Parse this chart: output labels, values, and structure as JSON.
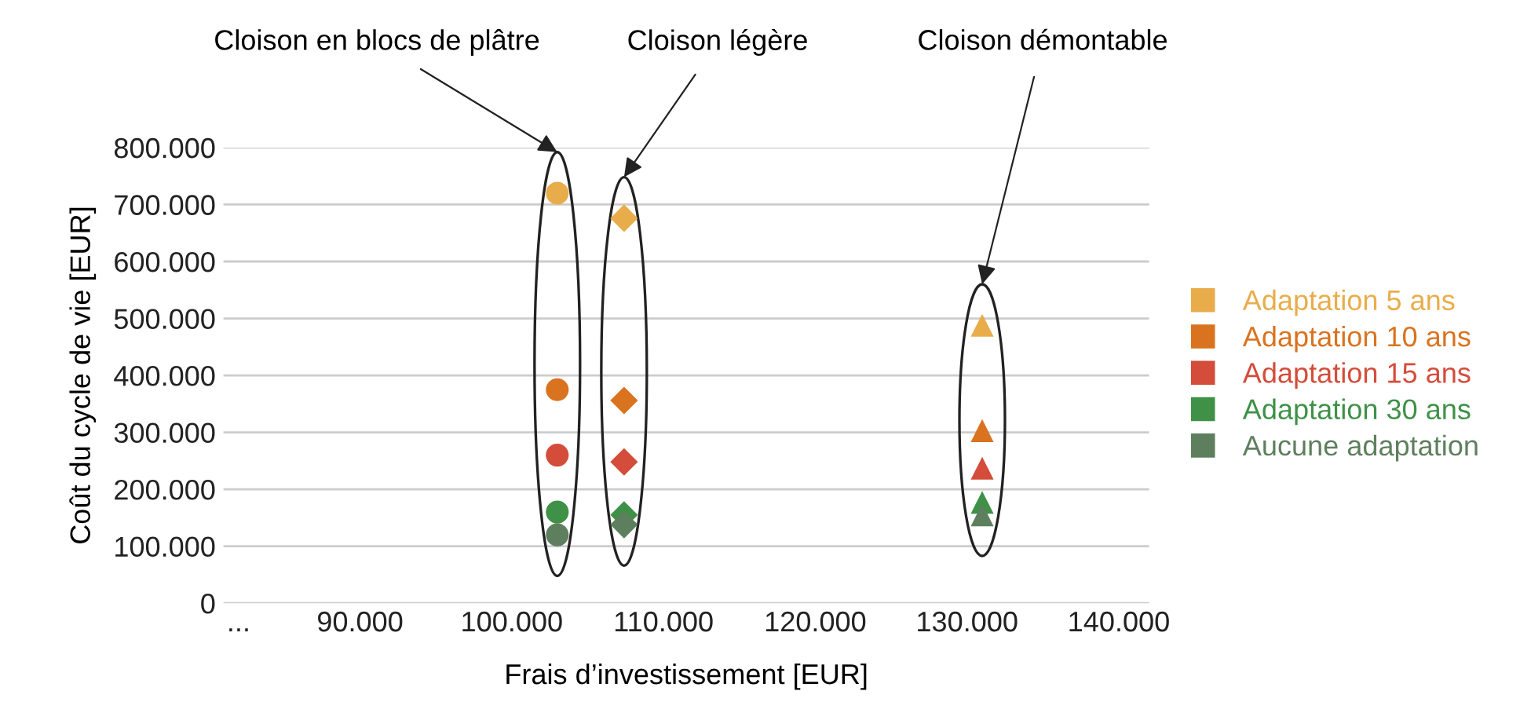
{
  "chart_data": {
    "type": "scatter",
    "xlabel": "Frais d’investissement [EUR]",
    "ylabel": "Coût du cycle de vie [EUR]",
    "x": [
      103000,
      107400,
      131000
    ],
    "marker": [
      "circle",
      "diamond",
      "triangle"
    ],
    "series": [
      {
        "name": "Adaptation 5 ans",
        "color": "#e8ad4a",
        "values": [
          720000,
          676000,
          488000
        ]
      },
      {
        "name": "Adaptation 10 ans",
        "color": "#d9731f",
        "values": [
          375000,
          356000,
          303000
        ]
      },
      {
        "name": "Adaptation 15 ans",
        "color": "#d44c3a",
        "values": [
          260000,
          248000,
          237000
        ]
      },
      {
        "name": "Adaptation 30 ans",
        "color": "#3f9147",
        "values": [
          160000,
          155000,
          177000
        ]
      },
      {
        "name": "Aucune adaptation",
        "color": "#5e7f5e",
        "values": [
          120000,
          138000,
          155000
        ]
      }
    ],
    "annotations": [
      "Cloison en blocs de plâtre",
      "Cloison légère",
      "Cloison démontable"
    ],
    "xlim": [
      81000,
      142000
    ],
    "xticks": [
      {
        "value": 82000,
        "label": "..."
      },
      {
        "value": 90000,
        "label": "90.000"
      },
      {
        "value": 100000,
        "label": "100.000"
      },
      {
        "value": 110000,
        "label": "110.000"
      },
      {
        "value": 120000,
        "label": "120.000"
      },
      {
        "value": 130000,
        "label": "130.000"
      },
      {
        "value": 140000,
        "label": "140.000"
      }
    ],
    "ylim": [
      0,
      800000
    ],
    "yticks": [
      0,
      {
        "value": 100000,
        "label": "100.000"
      },
      {
        "value": 200000,
        "label": "200.000"
      },
      {
        "value": 300000,
        "label": "300.000"
      },
      {
        "value": 400000,
        "label": "400.000"
      },
      {
        "value": 500000,
        "label": "500.000"
      },
      {
        "value": 600000,
        "label": "600.000"
      },
      {
        "value": 700000,
        "label": "700.000"
      },
      {
        "value": 800000,
        "label": "800.000"
      }
    ],
    "grid": "y",
    "legend": "right"
  }
}
